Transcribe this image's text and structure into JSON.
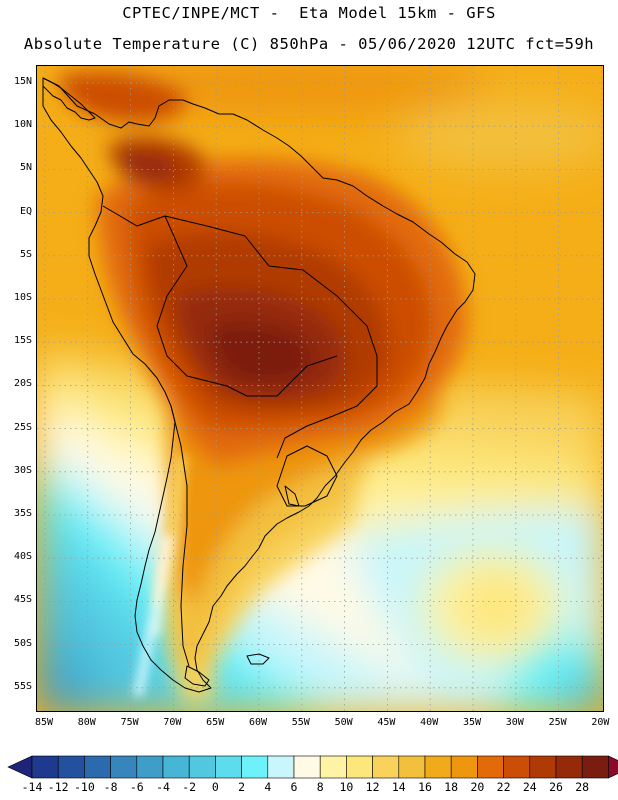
{
  "title_line1": "CPTEC/INPE/MCT -  Eta Model 15km - GFS",
  "title_line2": "Absolute Temperature (C) 850hPa - 05/06/2020 12UTC fct=59h",
  "latitude_labels": [
    "15N",
    "10N",
    "5N",
    "EQ",
    "5S",
    "10S",
    "15S",
    "20S",
    "25S",
    "30S",
    "35S",
    "40S",
    "45S",
    "50S",
    "55S"
  ],
  "longitude_labels": [
    "85W",
    "80W",
    "75W",
    "70W",
    "65W",
    "60W",
    "55W",
    "50W",
    "45W",
    "40W",
    "35W",
    "30W",
    "25W",
    "20W"
  ],
  "legend": {
    "labels": [
      "-14",
      "-12",
      "-10",
      "-8",
      "-6",
      "-4",
      "-2",
      "0",
      "2",
      "4",
      "6",
      "8",
      "10",
      "12",
      "14",
      "16",
      "18",
      "20",
      "22",
      "24",
      "26",
      "28"
    ],
    "colors": [
      "#1e3a8f",
      "#2450a0",
      "#2c6aae",
      "#3686bd",
      "#3f9ec9",
      "#47b6d6",
      "#52c8e0",
      "#5cdcec",
      "#6cf2f8",
      "#c8f6fc",
      "#fffae6",
      "#fff3a6",
      "#fde67a",
      "#f8d25a",
      "#f3c03e",
      "#f0aa1a",
      "#ee960e",
      "#e26a08",
      "#cc4e06",
      "#b03a06",
      "#952a08",
      "#7b1c10"
    ],
    "left_arrow_color": "#1e2478",
    "right_arrow_color": "#8a0a2a"
  },
  "map_colors": {
    "ocean_warm": "#f5ae17",
    "warm_18": "#ee960e",
    "warm_20": "#e26a08",
    "warm_22": "#cc4e06",
    "warm_24": "#b03a06",
    "warm_26": "#952a08",
    "warm_28": "#7b1c10",
    "mild_16": "#f3c03e",
    "mild_14": "#f8d25a",
    "mild_12": "#fde67a",
    "mild_10": "#fff3a6",
    "cool_8": "#fffae6",
    "cool_6": "#c8f6fc",
    "cool_4": "#6cf2f8",
    "cold_2": "#5cdcec",
    "cold_0": "#52c8e0",
    "cold_m2": "#47b6d6",
    "cold_m4": "#3f9ec9",
    "cold_m6": "#3686bd",
    "cold_m8": "#2c6aae"
  }
}
